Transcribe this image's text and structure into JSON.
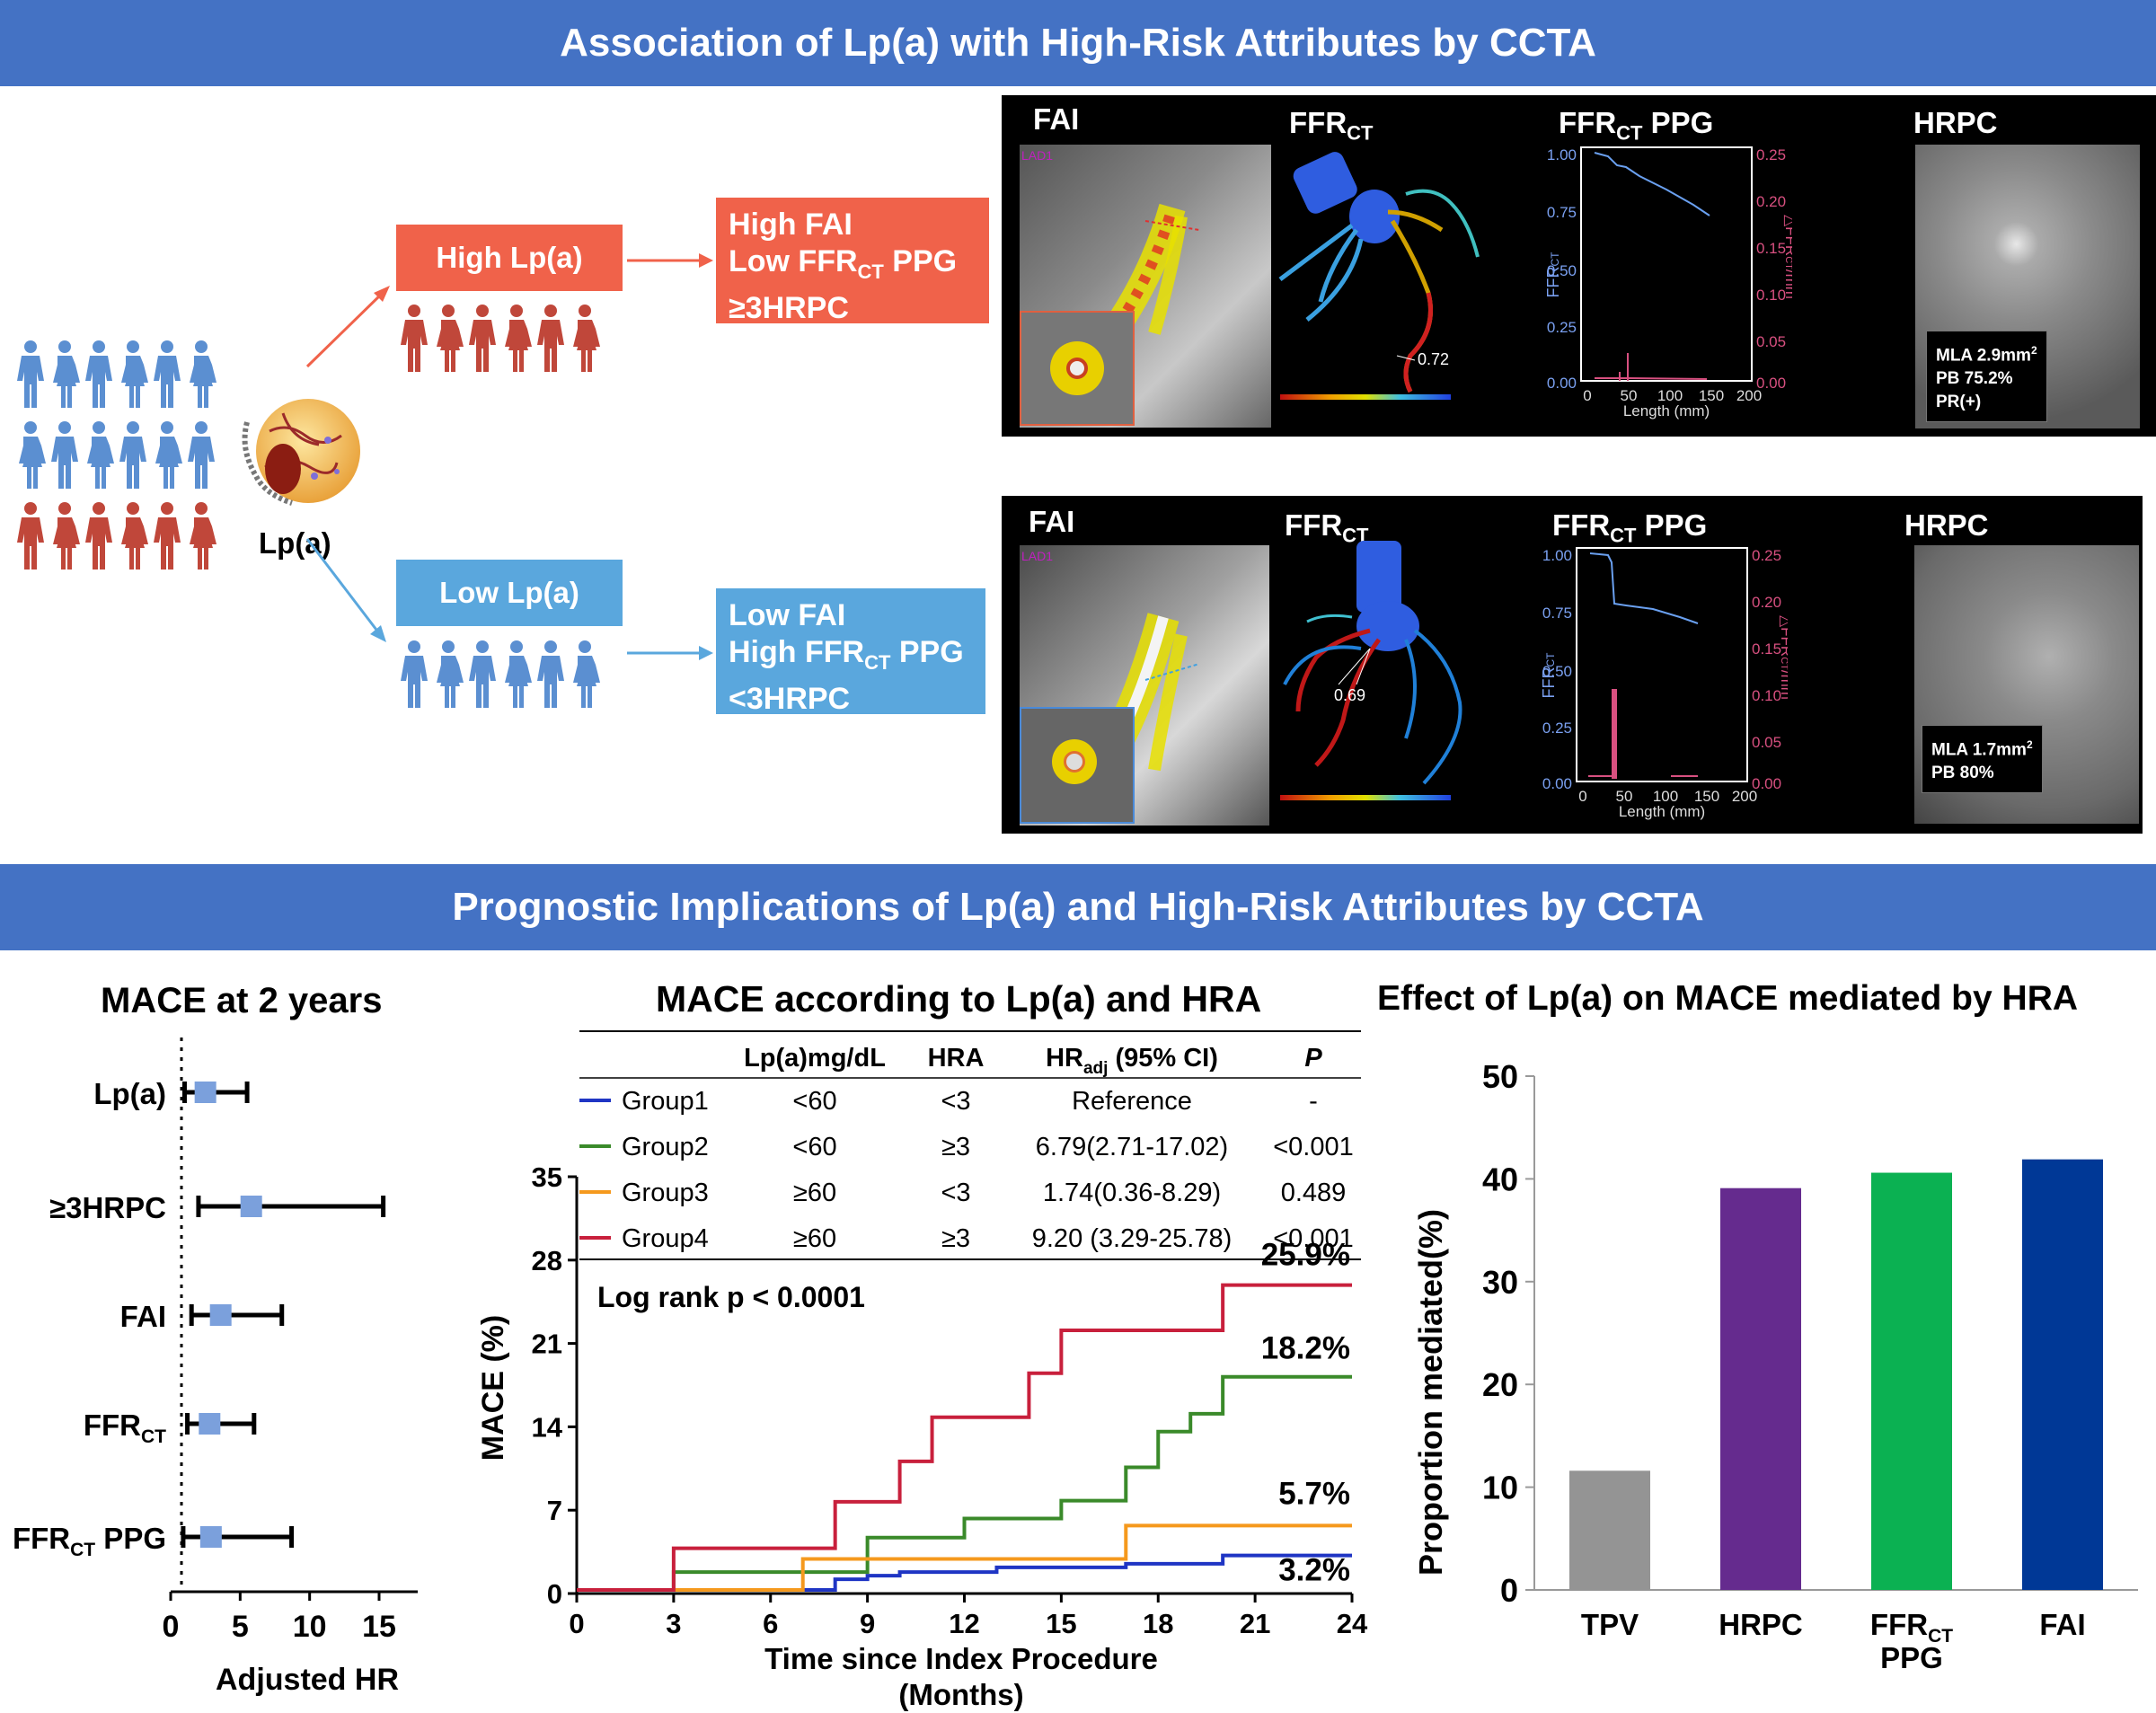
{
  "banner_top": "Association of Lp(a) with High-Risk Attributes by CCTA",
  "banner_bottom": "Prognostic Implications of Lp(a) and High-Risk Attributes by CCTA",
  "lpa_label": "Lp(a)",
  "high_group": {
    "label": "High Lp(a)",
    "outcomes": [
      "High FAI",
      "Low FFR",
      "CT",
      " PPG",
      "≥3HRPC"
    ],
    "panel": {
      "fai": "FAI",
      "ffrct": "FFR",
      "ffrct_sub": "CT",
      "ppg": "FFR",
      "ppg_sub": "CT",
      "ppg_tail": " PPG",
      "hrpc": "HRPC",
      "lad": "LAD1",
      "ffr_value": "0.72",
      "hrpc_box": [
        "MLA 2.9mm",
        "2",
        "PB 75.2%",
        "PR(+)"
      ]
    }
  },
  "low_group": {
    "label": "Low Lp(a)",
    "outcomes": [
      "Low FAI",
      "High FFR",
      "CT",
      " PPG",
      "<3HRPC"
    ],
    "panel": {
      "fai": "FAI",
      "ffrct": "FFR",
      "ffrct_sub": "CT",
      "ppg": "FFR",
      "ppg_sub": "CT",
      "ppg_tail": " PPG",
      "hrpc": "HRPC",
      "lad": "LAD1",
      "ffr_value": "0.69",
      "hrpc_box": [
        "MLA 1.7mm",
        "2",
        "PB 80%"
      ]
    }
  },
  "ppg_axes": {
    "y_left_ticks": [
      "1.00",
      "0.75",
      "0.50",
      "0.25",
      "0.00"
    ],
    "y_right_ticks": [
      "0.25",
      "0.20",
      "0.15",
      "0.10",
      "0.05",
      "0.00"
    ],
    "x_ticks": [
      "0",
      "50",
      "100",
      "150",
      "200"
    ],
    "xlabel": "Length (mm)",
    "ylabel_left": "FFR",
    "ylabel_left_sub": "CT",
    "ylabel_right": "△FFR",
    "ylabel_right_sub": "CT",
    "ylabel_right_tail": "/mm"
  },
  "colors": {
    "banner": "#4472c4",
    "high": "#f0624a",
    "low": "#5aa7dd",
    "people_blue": "#5b8fd1",
    "people_red": "#c0473a"
  },
  "forest": {
    "title": "MACE at 2 years",
    "xlabel": "Adjusted HR",
    "x_ticks": [
      "0",
      "5",
      "10",
      "15"
    ],
    "rows": [
      {
        "label": "Lp(a)",
        "sub": "",
        "tail": "",
        "hr": 2.5,
        "lo": 1.0,
        "hi": 5.5
      },
      {
        "label": "≥3HRPC",
        "sub": "",
        "tail": "",
        "hr": 5.8,
        "lo": 2.0,
        "hi": 15.3
      },
      {
        "label": "FAI",
        "sub": "",
        "tail": "",
        "hr": 3.6,
        "lo": 1.5,
        "hi": 8.0
      },
      {
        "label": "FFR",
        "sub": "CT",
        "tail": "",
        "hr": 2.8,
        "lo": 1.2,
        "hi": 6.0
      },
      {
        "label": "FFR",
        "sub": "CT",
        "tail": " PPG",
        "hr": 2.9,
        "lo": 0.9,
        "hi": 8.7
      }
    ]
  },
  "km": {
    "title": "MACE according to Lp(a) and HRA",
    "table_headers": [
      "Lp(a)mg/dL",
      "HRA",
      "HR",
      "adj",
      " (95% CI)",
      "P"
    ],
    "table_rows": [
      {
        "name": "Group1",
        "lpa": "<60",
        "hra": "<3",
        "hr": "Reference",
        "p": "-"
      },
      {
        "name": "Group2",
        "lpa": "<60",
        "hra": "≥3",
        "hr": "6.79(2.71-17.02)",
        "p": "<0.001"
      },
      {
        "name": "Group3",
        "lpa": "≥60",
        "hra": "<3",
        "hr": "1.74(0.36-8.29)",
        "p": "0.489"
      },
      {
        "name": "Group4",
        "lpa": "≥60",
        "hra": "≥3",
        "hr": "9.20 (3.29-25.78)",
        "p": "<0.001"
      }
    ],
    "logrank": "Log rank p < 0.0001",
    "ylabel": "MACE (%)",
    "xlabel_1": "Time since Index Procedure",
    "xlabel_2": "(Months)",
    "x_ticks": [
      "0",
      "3",
      "6",
      "9",
      "12",
      "15",
      "18",
      "21",
      "24"
    ],
    "y_ticks": [
      "0",
      "7",
      "14",
      "21",
      "28",
      "35"
    ],
    "end_labels": [
      "3.2%",
      "18.2%",
      "5.7%",
      "25.9%"
    ]
  },
  "chart_data": [
    {
      "type": "line",
      "title": "MACE according to Lp(a) and HRA",
      "xlabel": "Time since Index Procedure (Months)",
      "ylabel": "MACE (%)",
      "xlim": [
        0,
        24
      ],
      "ylim": [
        0,
        35
      ],
      "series": [
        {
          "name": "Group1",
          "color": "#1f35c4",
          "x": [
            0,
            3,
            8,
            9,
            10,
            13,
            17,
            20,
            24
          ],
          "y": [
            0.3,
            0.3,
            1.2,
            1.5,
            1.8,
            2.2,
            2.5,
            3.2,
            3.2
          ]
        },
        {
          "name": "Group2",
          "color": "#3a8a2a",
          "x": [
            0,
            3,
            9,
            12,
            15,
            17,
            18,
            19,
            20,
            24
          ],
          "y": [
            0.3,
            1.8,
            4.7,
            6.3,
            7.8,
            10.6,
            13.6,
            15.1,
            18.2,
            18.2
          ]
        },
        {
          "name": "Group3",
          "color": "#f5991d",
          "x": [
            0,
            7,
            17,
            24
          ],
          "y": [
            0.3,
            2.9,
            5.7,
            5.7
          ]
        },
        {
          "name": "Group4",
          "color": "#c8203c",
          "x": [
            0,
            3,
            8,
            10,
            11,
            14,
            15,
            20,
            24
          ],
          "y": [
            0.3,
            3.8,
            7.7,
            11.1,
            14.8,
            18.5,
            22.1,
            25.9,
            25.9
          ]
        }
      ]
    },
    {
      "type": "bar",
      "title": "Effect of Lp(a) on MACE mediated by HRA",
      "ylabel": "Proportion mediated(%)",
      "ylim": [
        0,
        50
      ],
      "categories": [
        "TPV",
        "HRPC",
        "FFRCT PPG",
        "FAI"
      ],
      "category_labels": [
        {
          "main": "TPV",
          "sub": "",
          "line2": ""
        },
        {
          "main": "HRPC",
          "sub": "",
          "line2": ""
        },
        {
          "main": "FFR",
          "sub": "CT",
          "line2": "PPG"
        },
        {
          "main": "FAI",
          "sub": "",
          "line2": ""
        }
      ],
      "y_ticks": [
        "0",
        "10",
        "20",
        "30",
        "40",
        "50"
      ],
      "values": [
        11.6,
        39.1,
        40.6,
        41.9
      ],
      "colors": [
        "#949494",
        "#652b8e",
        "#0bb152",
        "#003896"
      ]
    }
  ]
}
